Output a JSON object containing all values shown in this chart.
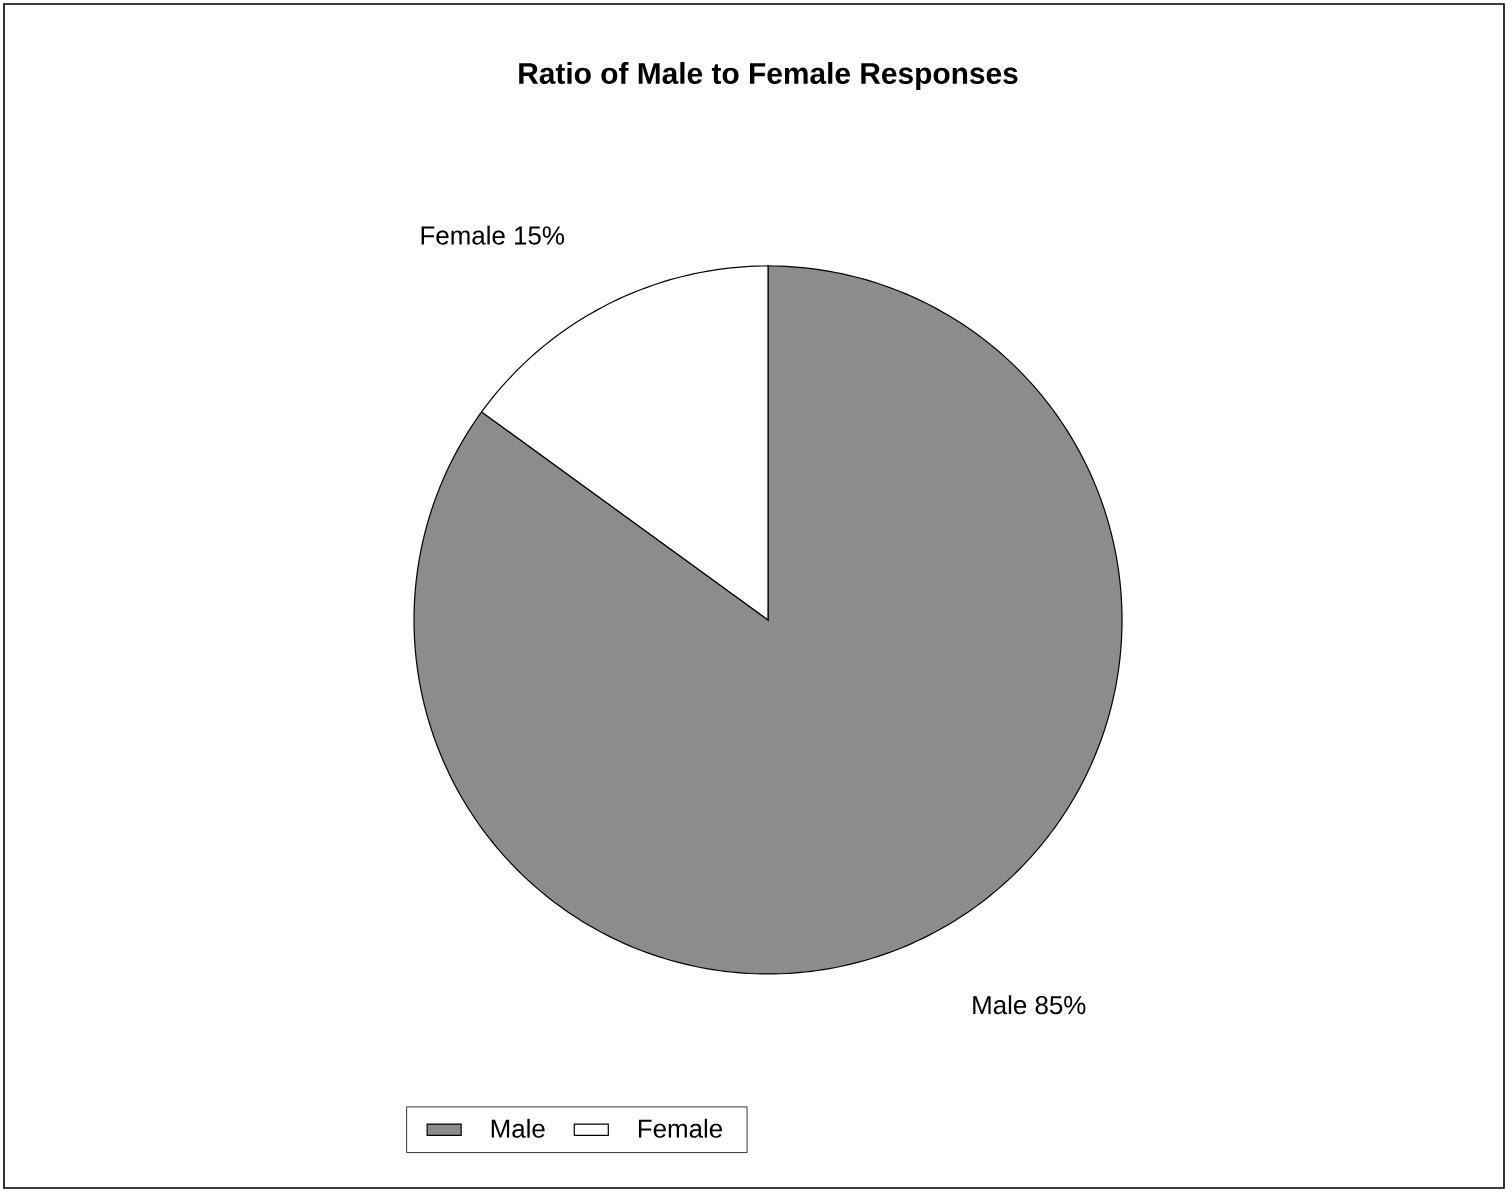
{
  "chart_data": {
    "type": "pie",
    "title": "Ratio of Male to Female Responses",
    "categories": [
      "Male",
      "Female"
    ],
    "values": [
      85,
      15
    ],
    "colors": [
      "#8c8c8c",
      "#ffffff"
    ],
    "value_labels": [
      "85%",
      "15%"
    ],
    "legend": "bottom"
  }
}
